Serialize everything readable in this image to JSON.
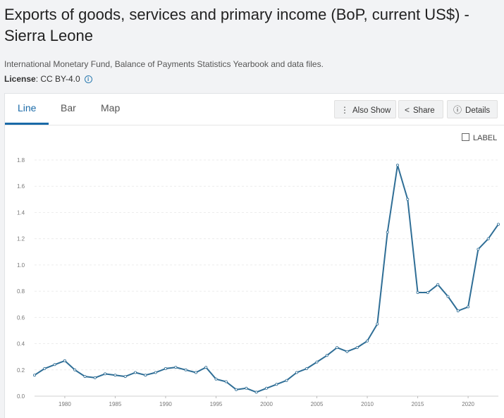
{
  "page": {
    "title": "Exports of goods, services and primary income (BoP, current US$) - Sierra Leone",
    "source": "International Monetary Fund, Balance of Payments Statistics Yearbook and data files.",
    "license_label": "License",
    "license_value": ": CC BY-4.0"
  },
  "tabs": [
    {
      "label": "Line",
      "active": true
    },
    {
      "label": "Bar",
      "active": false
    },
    {
      "label": "Map",
      "active": false
    }
  ],
  "toolbar": {
    "also_show": "Also Show",
    "share": "Share",
    "details": "Details"
  },
  "label_toggle": "LABEL",
  "colors": {
    "line": "#2f6e96",
    "accent": "#1a6aa8"
  },
  "chart_data": {
    "type": "line",
    "title": "",
    "xlabel": "",
    "ylabel": "",
    "ylim": [
      0,
      1.8
    ],
    "xlim": [
      1977,
      2023
    ],
    "grid": true,
    "x_ticks": [
      1980,
      1985,
      1990,
      1995,
      2000,
      2005,
      2010,
      2015,
      2020
    ],
    "y_ticks": [
      "0.0",
      "0.2",
      "0.4",
      "0.6",
      "0.8",
      "1.0",
      "1.2",
      "1.4",
      "1.6",
      "1.8"
    ],
    "series": [
      {
        "name": "",
        "x": [
          1977,
          1978,
          1979,
          1980,
          1981,
          1982,
          1983,
          1984,
          1985,
          1986,
          1987,
          1988,
          1989,
          1990,
          1991,
          1992,
          1993,
          1994,
          1995,
          1996,
          1997,
          1998,
          1999,
          2000,
          2001,
          2002,
          2003,
          2004,
          2005,
          2006,
          2007,
          2008,
          2009,
          2010,
          2011,
          2012,
          2013,
          2014,
          2015,
          2016,
          2017,
          2018,
          2019,
          2020,
          2021,
          2022,
          2023
        ],
        "y": [
          0.16,
          0.21,
          0.24,
          0.27,
          0.2,
          0.15,
          0.14,
          0.17,
          0.16,
          0.15,
          0.18,
          0.16,
          0.18,
          0.21,
          0.22,
          0.2,
          0.18,
          0.22,
          0.13,
          0.11,
          0.05,
          0.06,
          0.03,
          0.06,
          0.09,
          0.12,
          0.18,
          0.21,
          0.26,
          0.31,
          0.37,
          0.34,
          0.37,
          0.42,
          0.55,
          1.25,
          1.76,
          1.5,
          0.79,
          0.79,
          0.85,
          0.76,
          0.65,
          0.68,
          1.12,
          1.2,
          1.31
        ]
      }
    ]
  }
}
